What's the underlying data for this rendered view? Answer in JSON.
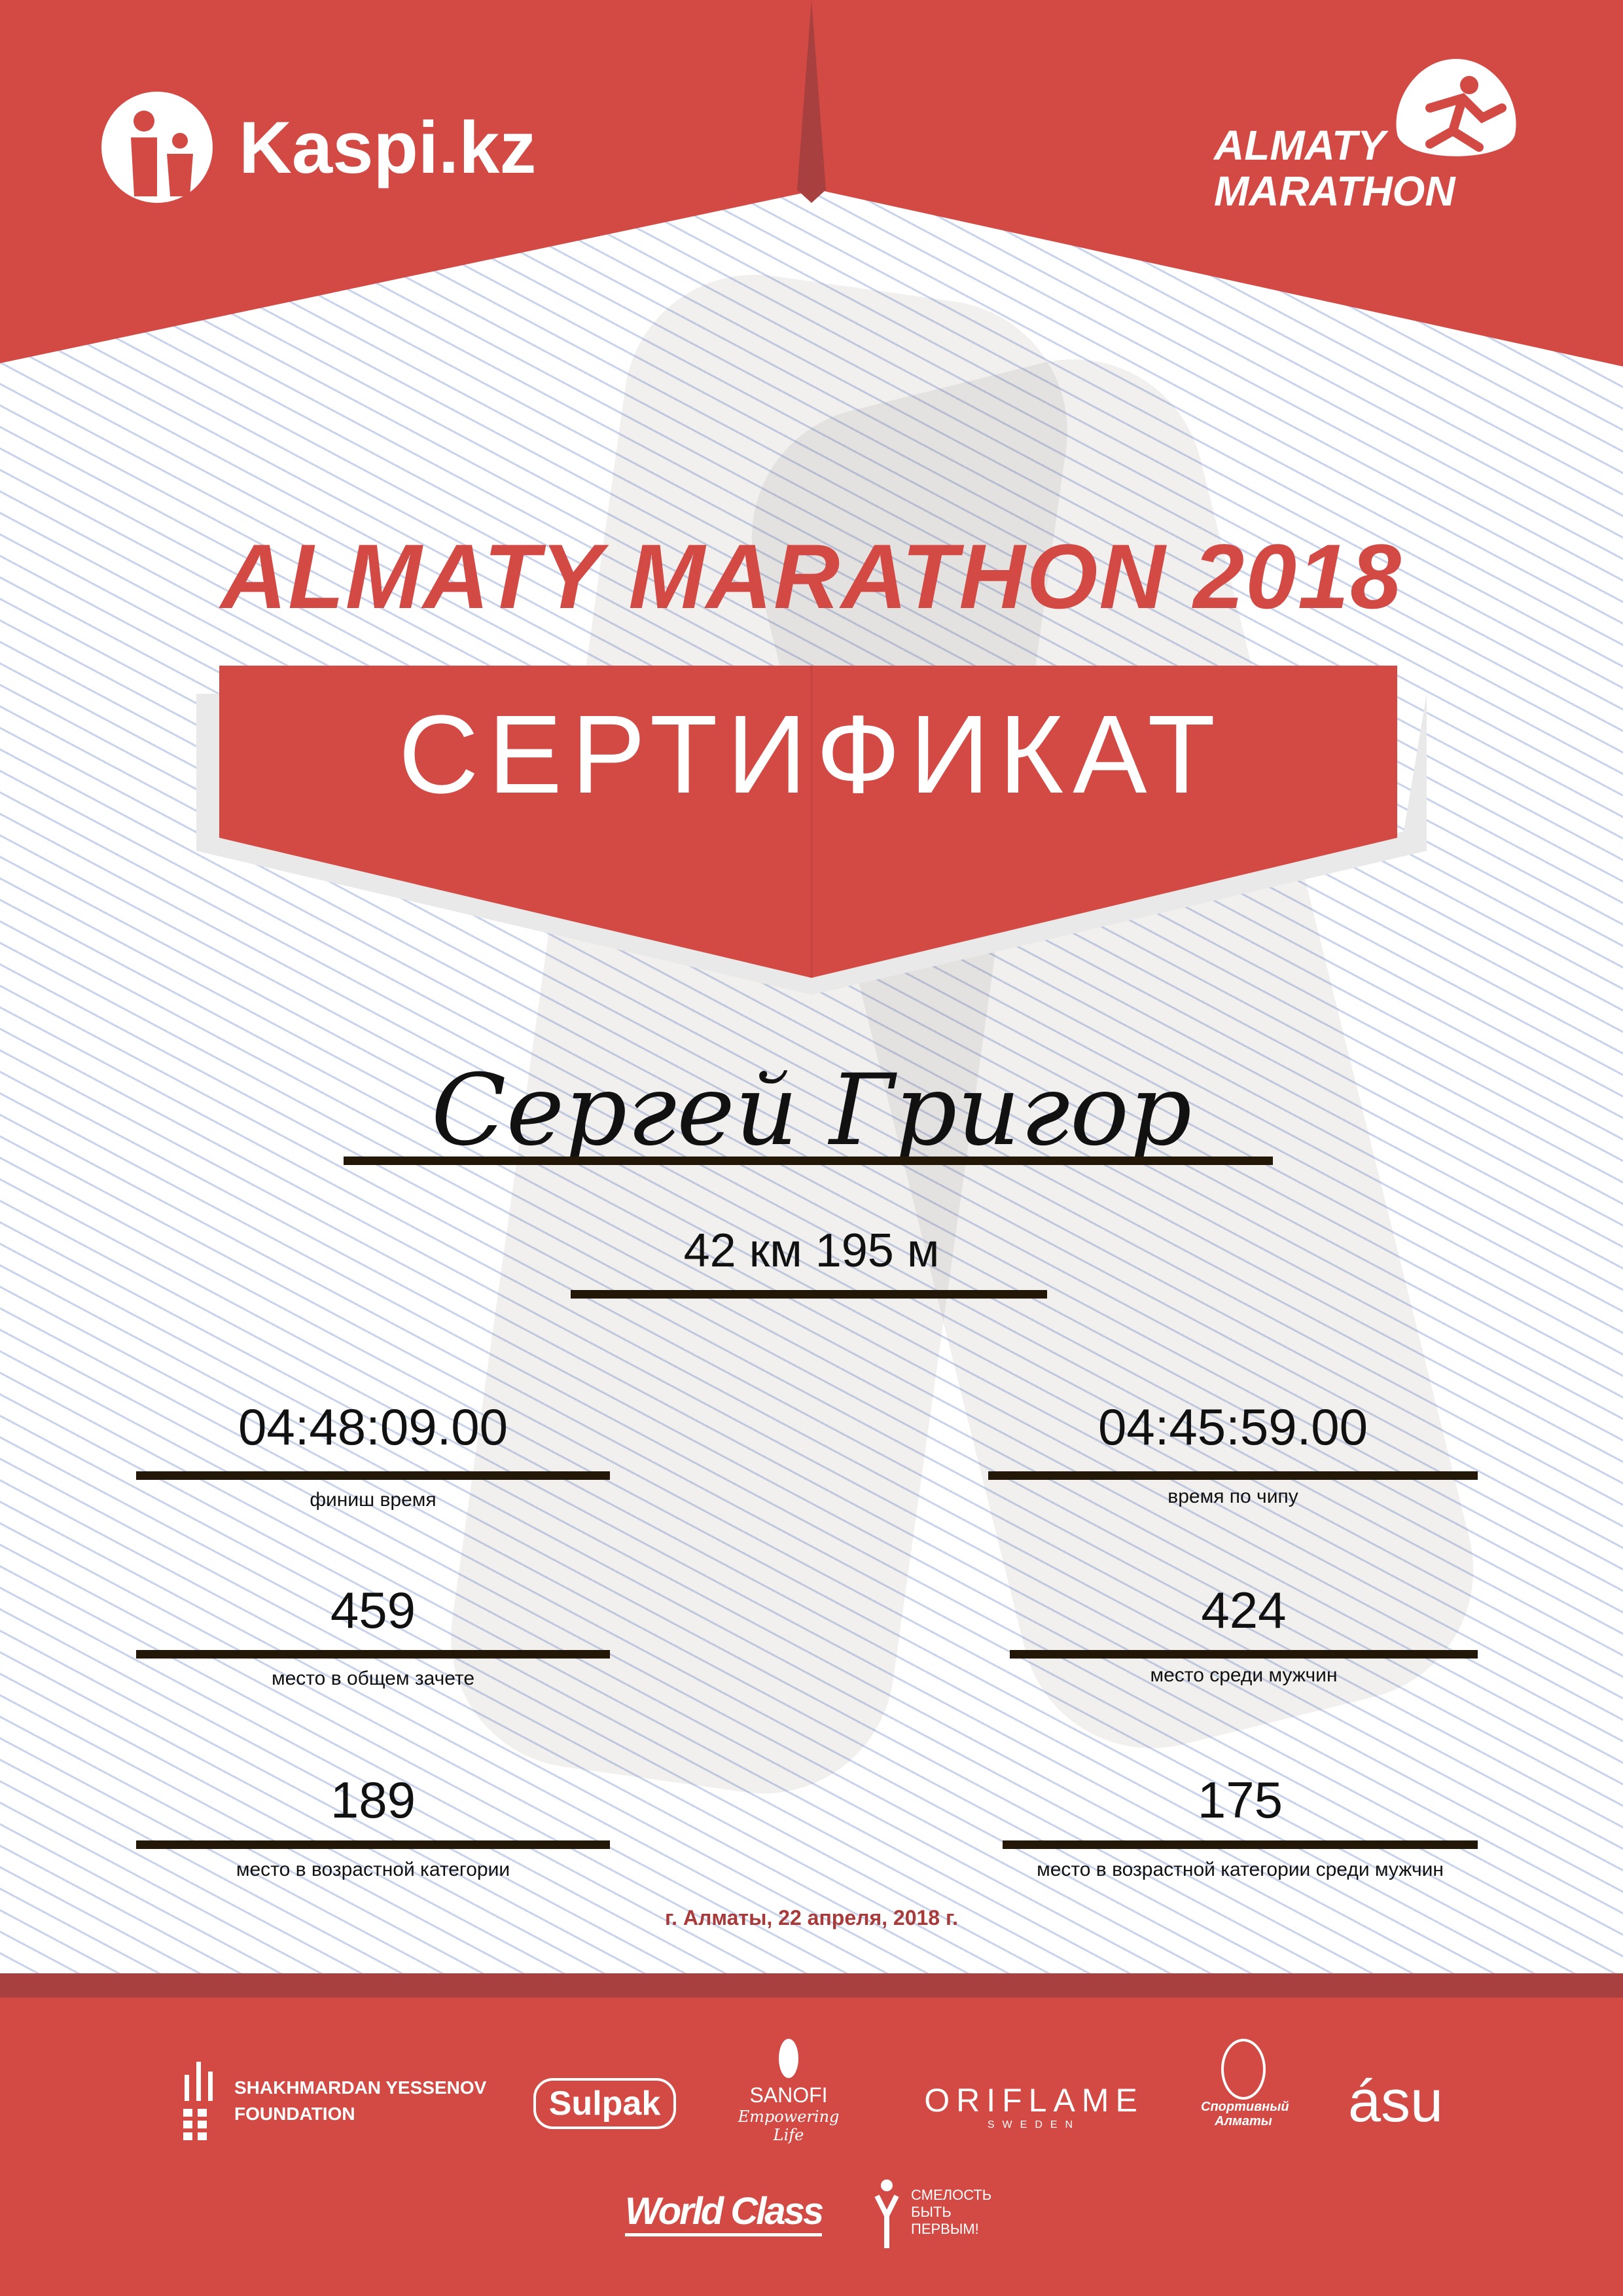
{
  "header": {
    "sponsor_logo": "Kaspi.kz",
    "event_logo_line1": "ALMATY",
    "event_logo_line2": "MARATHON"
  },
  "title": "ALMATY MARATHON 2018",
  "banner": "СЕРТИФИКАТ",
  "participant_name": "Сергей Григор",
  "distance": "42 км 195 м",
  "results": [
    {
      "value": "04:48:09.00",
      "label": "финиш время"
    },
    {
      "value": "04:45:59.00",
      "label": "время по чипу"
    },
    {
      "value": "459",
      "label": "место в общем зачете"
    },
    {
      "value": "424",
      "label": "место среди мужчин"
    },
    {
      "value": "189",
      "label": "место в возрастной категории"
    },
    {
      "value": "175",
      "label": "место в возрастной категории среди мужчин"
    }
  ],
  "date_place": "г. Алматы, 22 апреля, 2018 г.",
  "footer_logos": {
    "yessenov_line1": "SHAKHMARDAN YESSENOV",
    "yessenov_line2": "FOUNDATION",
    "sulpak": "Sulpak",
    "sanofi": "SANOFI",
    "sanofi_tagline": "Empowering Life",
    "oriflame": "ORIFLAME",
    "oriflame_sub": "SWEDEN",
    "sport_almaty": "Спортивный Алматы",
    "asu": "ásu",
    "worldclass": "World Class",
    "fund_line1": "СМЕЛОСТЬ",
    "fund_line2": "БЫТЬ",
    "fund_line3": "ПЕРВЫМ!"
  },
  "colors": {
    "brand_red": "#d34a45",
    "dark_red": "#a84040",
    "rule": "#231708",
    "date_text": "#a83a3a"
  }
}
